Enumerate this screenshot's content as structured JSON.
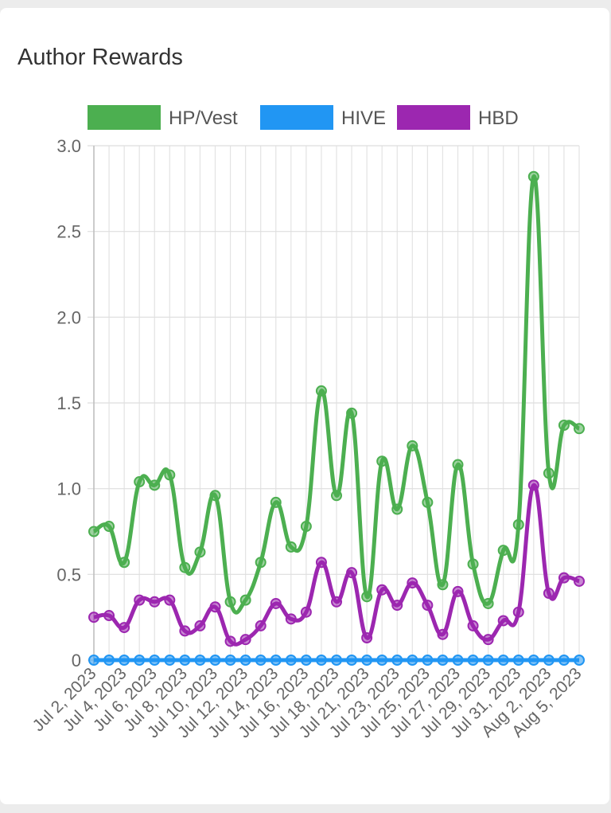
{
  "card": {
    "title": "Author Rewards"
  },
  "colors": {
    "hp": "#4caf50",
    "hive": "#2196f3",
    "hbd": "#9c27b0"
  },
  "chart_data": {
    "type": "line",
    "title": "Author Rewards",
    "xlabel": "",
    "ylabel": "",
    "ylim": [
      0,
      3.0
    ],
    "y_ticks": [
      0,
      0.5,
      1.0,
      1.5,
      2.0,
      2.5,
      3.0
    ],
    "y_tick_labels": [
      "0",
      "0.5",
      "1.0",
      "1.5",
      "2.0",
      "2.5",
      "3.0"
    ],
    "grid": true,
    "legend": "top",
    "x_tick_labels": [
      "Jul 2, 2023",
      "Jul 4, 2023",
      "Jul 6, 2023",
      "Jul 8, 2023",
      "Jul 10, 2023",
      "Jul 12, 2023",
      "Jul 14, 2023",
      "Jul 16, 2023",
      "Jul 18, 2023",
      "Jul 21, 2023",
      "Jul 23, 2023",
      "Jul 25, 2023",
      "Jul 27, 2023",
      "Jul 29, 2023",
      "Jul 31, 2023",
      "Aug 2, 2023",
      "Aug 5, 2023"
    ],
    "x_tick_positions": [
      0,
      2,
      4,
      6,
      8,
      10,
      12,
      14,
      16,
      18,
      20,
      22,
      24,
      26,
      28,
      30,
      32
    ],
    "series": [
      {
        "name": "HP/Vest",
        "color": "#4caf50",
        "values": [
          0.75,
          0.78,
          0.57,
          1.04,
          1.02,
          1.08,
          0.54,
          0.63,
          0.96,
          0.34,
          0.35,
          0.57,
          0.92,
          0.66,
          0.78,
          1.57,
          0.96,
          1.44,
          0.37,
          1.16,
          0.88,
          1.25,
          0.92,
          0.44,
          1.14,
          0.56,
          0.33,
          0.64,
          0.79,
          2.82,
          1.09,
          1.37,
          1.35
        ]
      },
      {
        "name": "HIVE",
        "color": "#2196f3",
        "values": [
          0,
          0,
          0,
          0,
          0,
          0,
          0,
          0,
          0,
          0,
          0,
          0,
          0,
          0,
          0,
          0,
          0,
          0,
          0,
          0,
          0,
          0,
          0,
          0,
          0,
          0,
          0,
          0,
          0,
          0,
          0,
          0,
          0
        ]
      },
      {
        "name": "HBD",
        "color": "#9c27b0",
        "values": [
          0.25,
          0.26,
          0.19,
          0.35,
          0.34,
          0.35,
          0.17,
          0.2,
          0.31,
          0.11,
          0.12,
          0.2,
          0.33,
          0.24,
          0.28,
          0.57,
          0.34,
          0.51,
          0.13,
          0.41,
          0.32,
          0.45,
          0.32,
          0.15,
          0.4,
          0.2,
          0.12,
          0.23,
          0.28,
          1.02,
          0.39,
          0.48,
          0.46
        ]
      }
    ]
  }
}
